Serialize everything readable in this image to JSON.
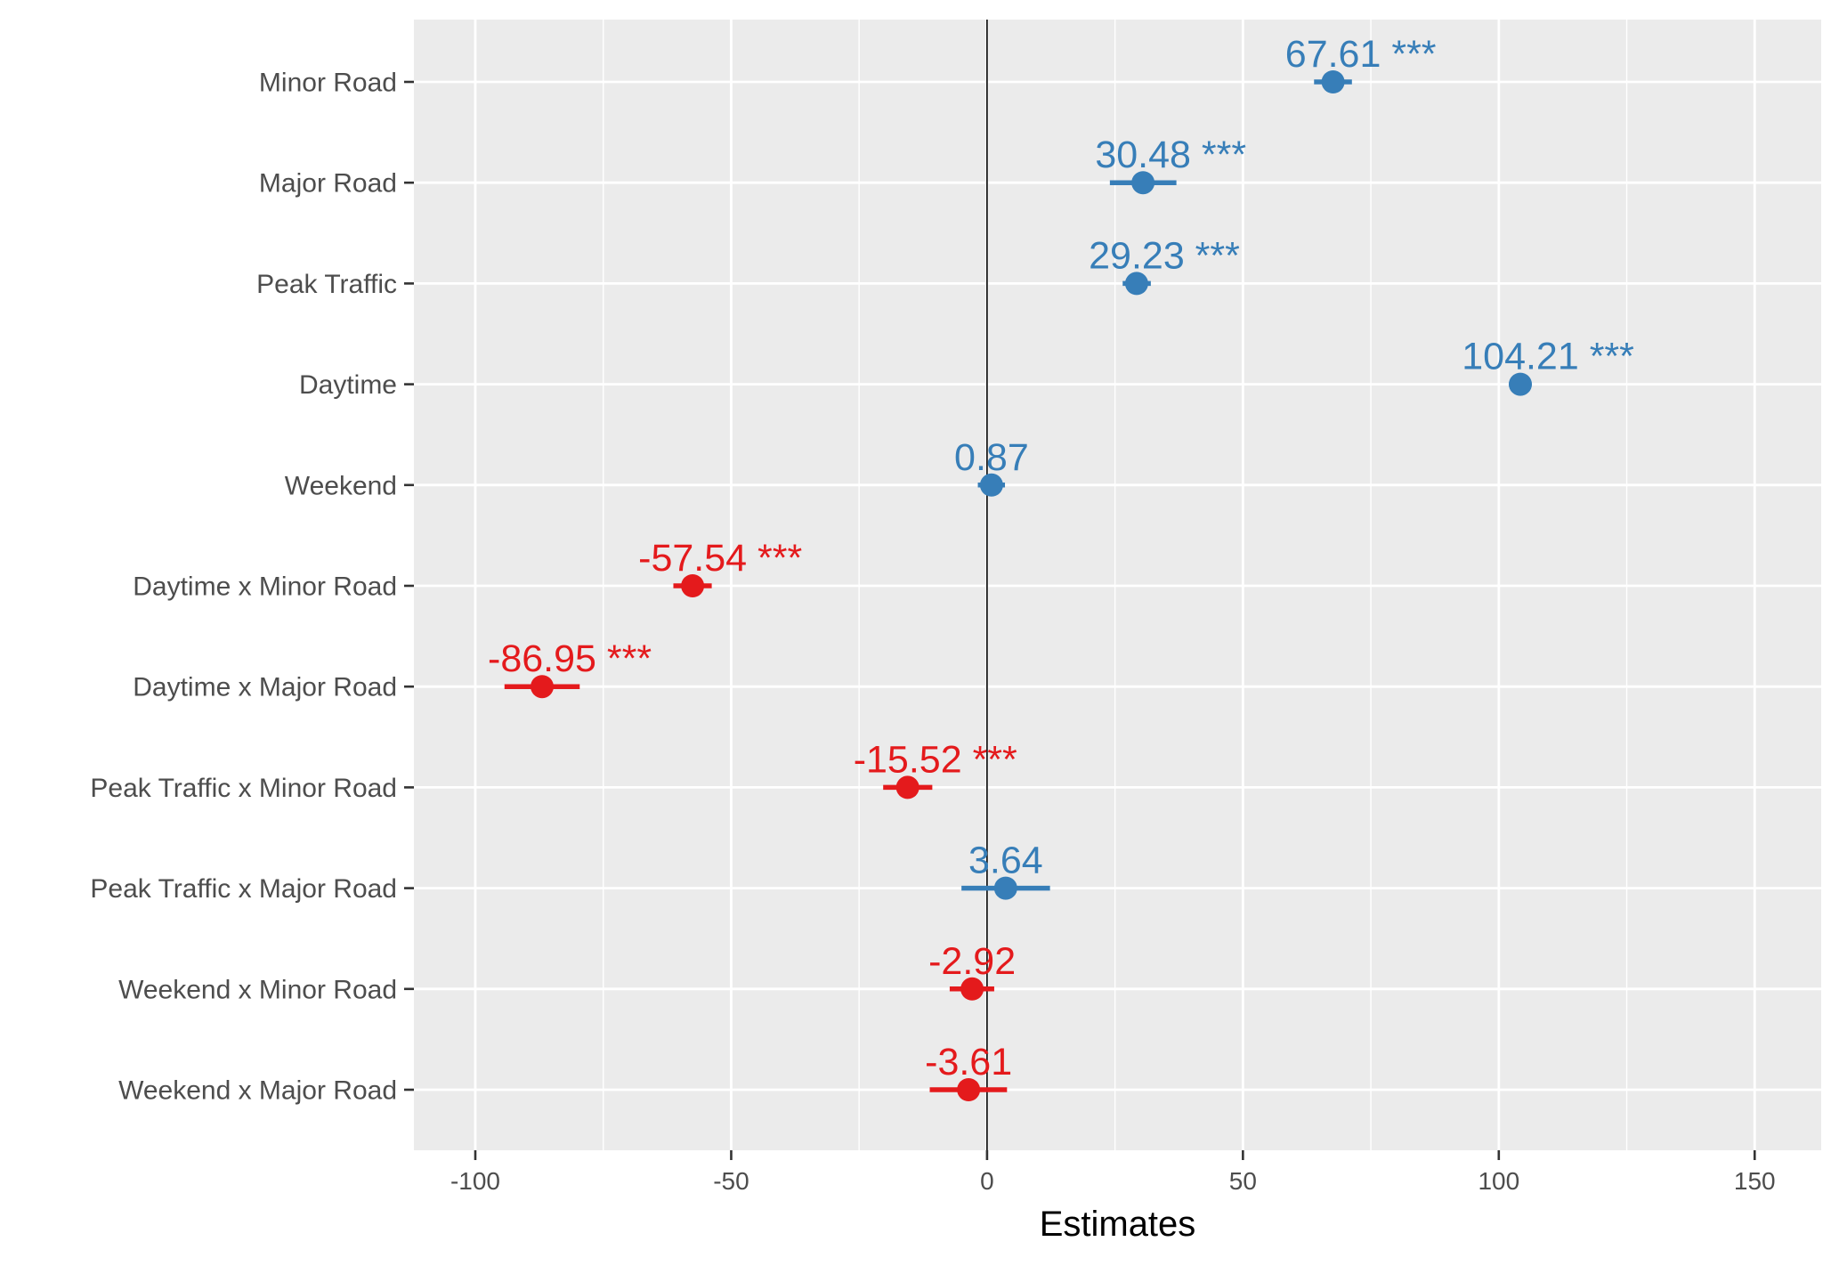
{
  "chart_data": {
    "type": "scatter",
    "subtype": "coefficient-plot",
    "title": "",
    "xlabel": "Estimates",
    "ylabel": "",
    "xlim": [
      -112,
      163
    ],
    "xticks": [
      -100,
      -50,
      0,
      50,
      100,
      150
    ],
    "xtick_labels": [
      "-100",
      "-50",
      "0",
      "50",
      "100",
      "150"
    ],
    "reference_line": 0,
    "grid": true,
    "legend": "none",
    "colors": {
      "positive": "#377EB8",
      "negative": "#E41A1C",
      "panel": "#EBEBEB",
      "gridline": "#FFFFFF",
      "zero_line": "#000000"
    },
    "terms": [
      {
        "name": "Minor Road",
        "estimate": 67.61,
        "ci": [
          63.9,
          71.3
        ],
        "label": "67.61 ***"
      },
      {
        "name": "Major Road",
        "estimate": 30.48,
        "ci": [
          24.0,
          37.0
        ],
        "label": "30.48 ***"
      },
      {
        "name": "Peak Traffic",
        "estimate": 29.23,
        "ci": [
          26.5,
          32.0
        ],
        "label": "29.23 ***"
      },
      {
        "name": "Daytime",
        "estimate": 104.21,
        "ci": [
          102.0,
          106.4
        ],
        "label": "104.21 ***"
      },
      {
        "name": "Weekend",
        "estimate": 0.87,
        "ci": [
          -1.8,
          3.5
        ],
        "label": "0.87"
      },
      {
        "name": "Daytime x Minor Road",
        "estimate": -57.54,
        "ci": [
          -61.3,
          -53.8
        ],
        "label": "-57.54 ***"
      },
      {
        "name": "Daytime x Major Road",
        "estimate": -86.95,
        "ci": [
          -94.3,
          -79.6
        ],
        "label": "-86.95 ***"
      },
      {
        "name": "Peak Traffic x Minor Road",
        "estimate": -15.52,
        "ci": [
          -20.3,
          -10.7
        ],
        "label": "-15.52 ***"
      },
      {
        "name": "Peak Traffic x Major Road",
        "estimate": 3.64,
        "ci": [
          -5.0,
          12.3
        ],
        "label": "3.64"
      },
      {
        "name": "Weekend x Minor Road",
        "estimate": -2.92,
        "ci": [
          -7.3,
          1.4
        ],
        "label": "-2.92"
      },
      {
        "name": "Weekend x Major Road",
        "estimate": -3.61,
        "ci": [
          -11.2,
          3.9
        ],
        "label": "-3.61"
      }
    ]
  }
}
